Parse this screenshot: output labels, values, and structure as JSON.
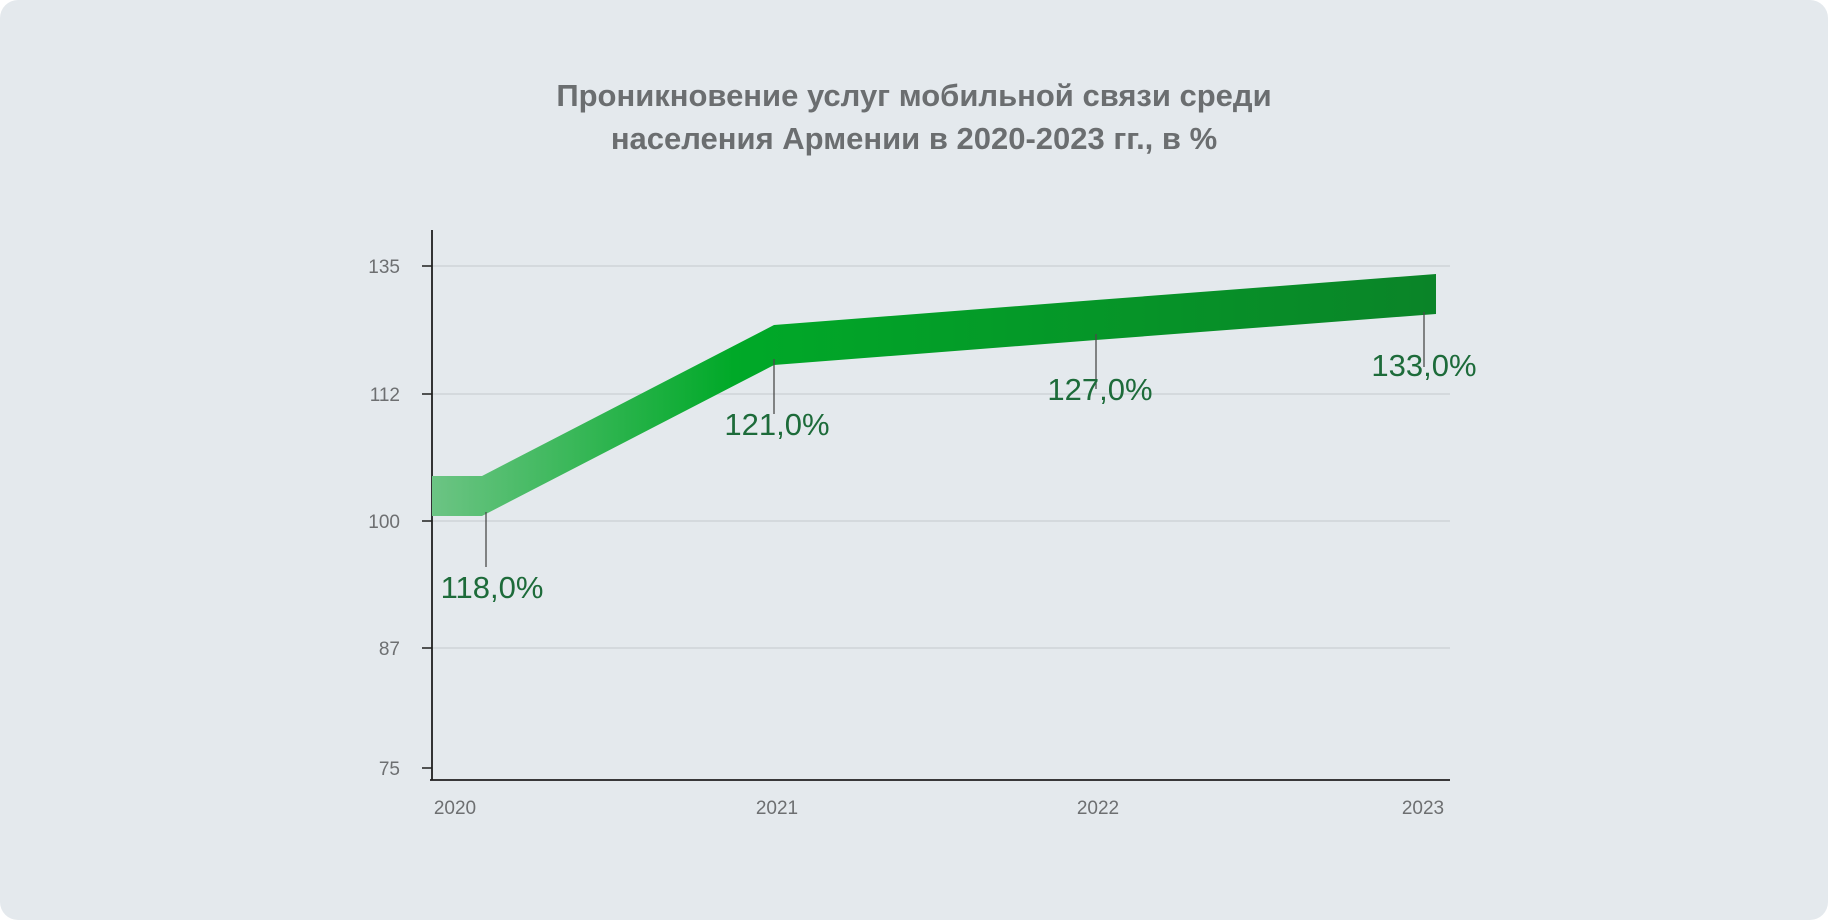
{
  "chart_data": {
    "type": "line",
    "title_lines": [
      "Проникновение услуг мобильной связи среди",
      "населения Армении в 2020-2023 гг., в %"
    ],
    "xlabel": "",
    "ylabel": "",
    "categories": [
      "2020",
      "2021",
      "2022",
      "2023"
    ],
    "x_ticks": [
      "2020",
      "2021",
      "2022",
      "2023"
    ],
    "y_ticks": [
      "135",
      "112",
      "100",
      "87",
      "75"
    ],
    "y_tick_values": [
      135,
      112,
      100,
      87,
      75
    ],
    "series": [
      {
        "values": [
          118.0,
          121.0,
          127.0,
          133.0
        ],
        "labels": [
          "118,0%",
          "121,0%",
          "127,0%",
          "133,0%"
        ]
      }
    ],
    "grid": true,
    "legend": "none",
    "colors": {
      "band_start": "#6cc484",
      "band_mid": "#00a928",
      "band_end": "#0a8428",
      "label": "#1d6b3a",
      "axis": "#1f1f1f",
      "grid": "#cfd4d8",
      "background": "#e4e9ed"
    }
  }
}
